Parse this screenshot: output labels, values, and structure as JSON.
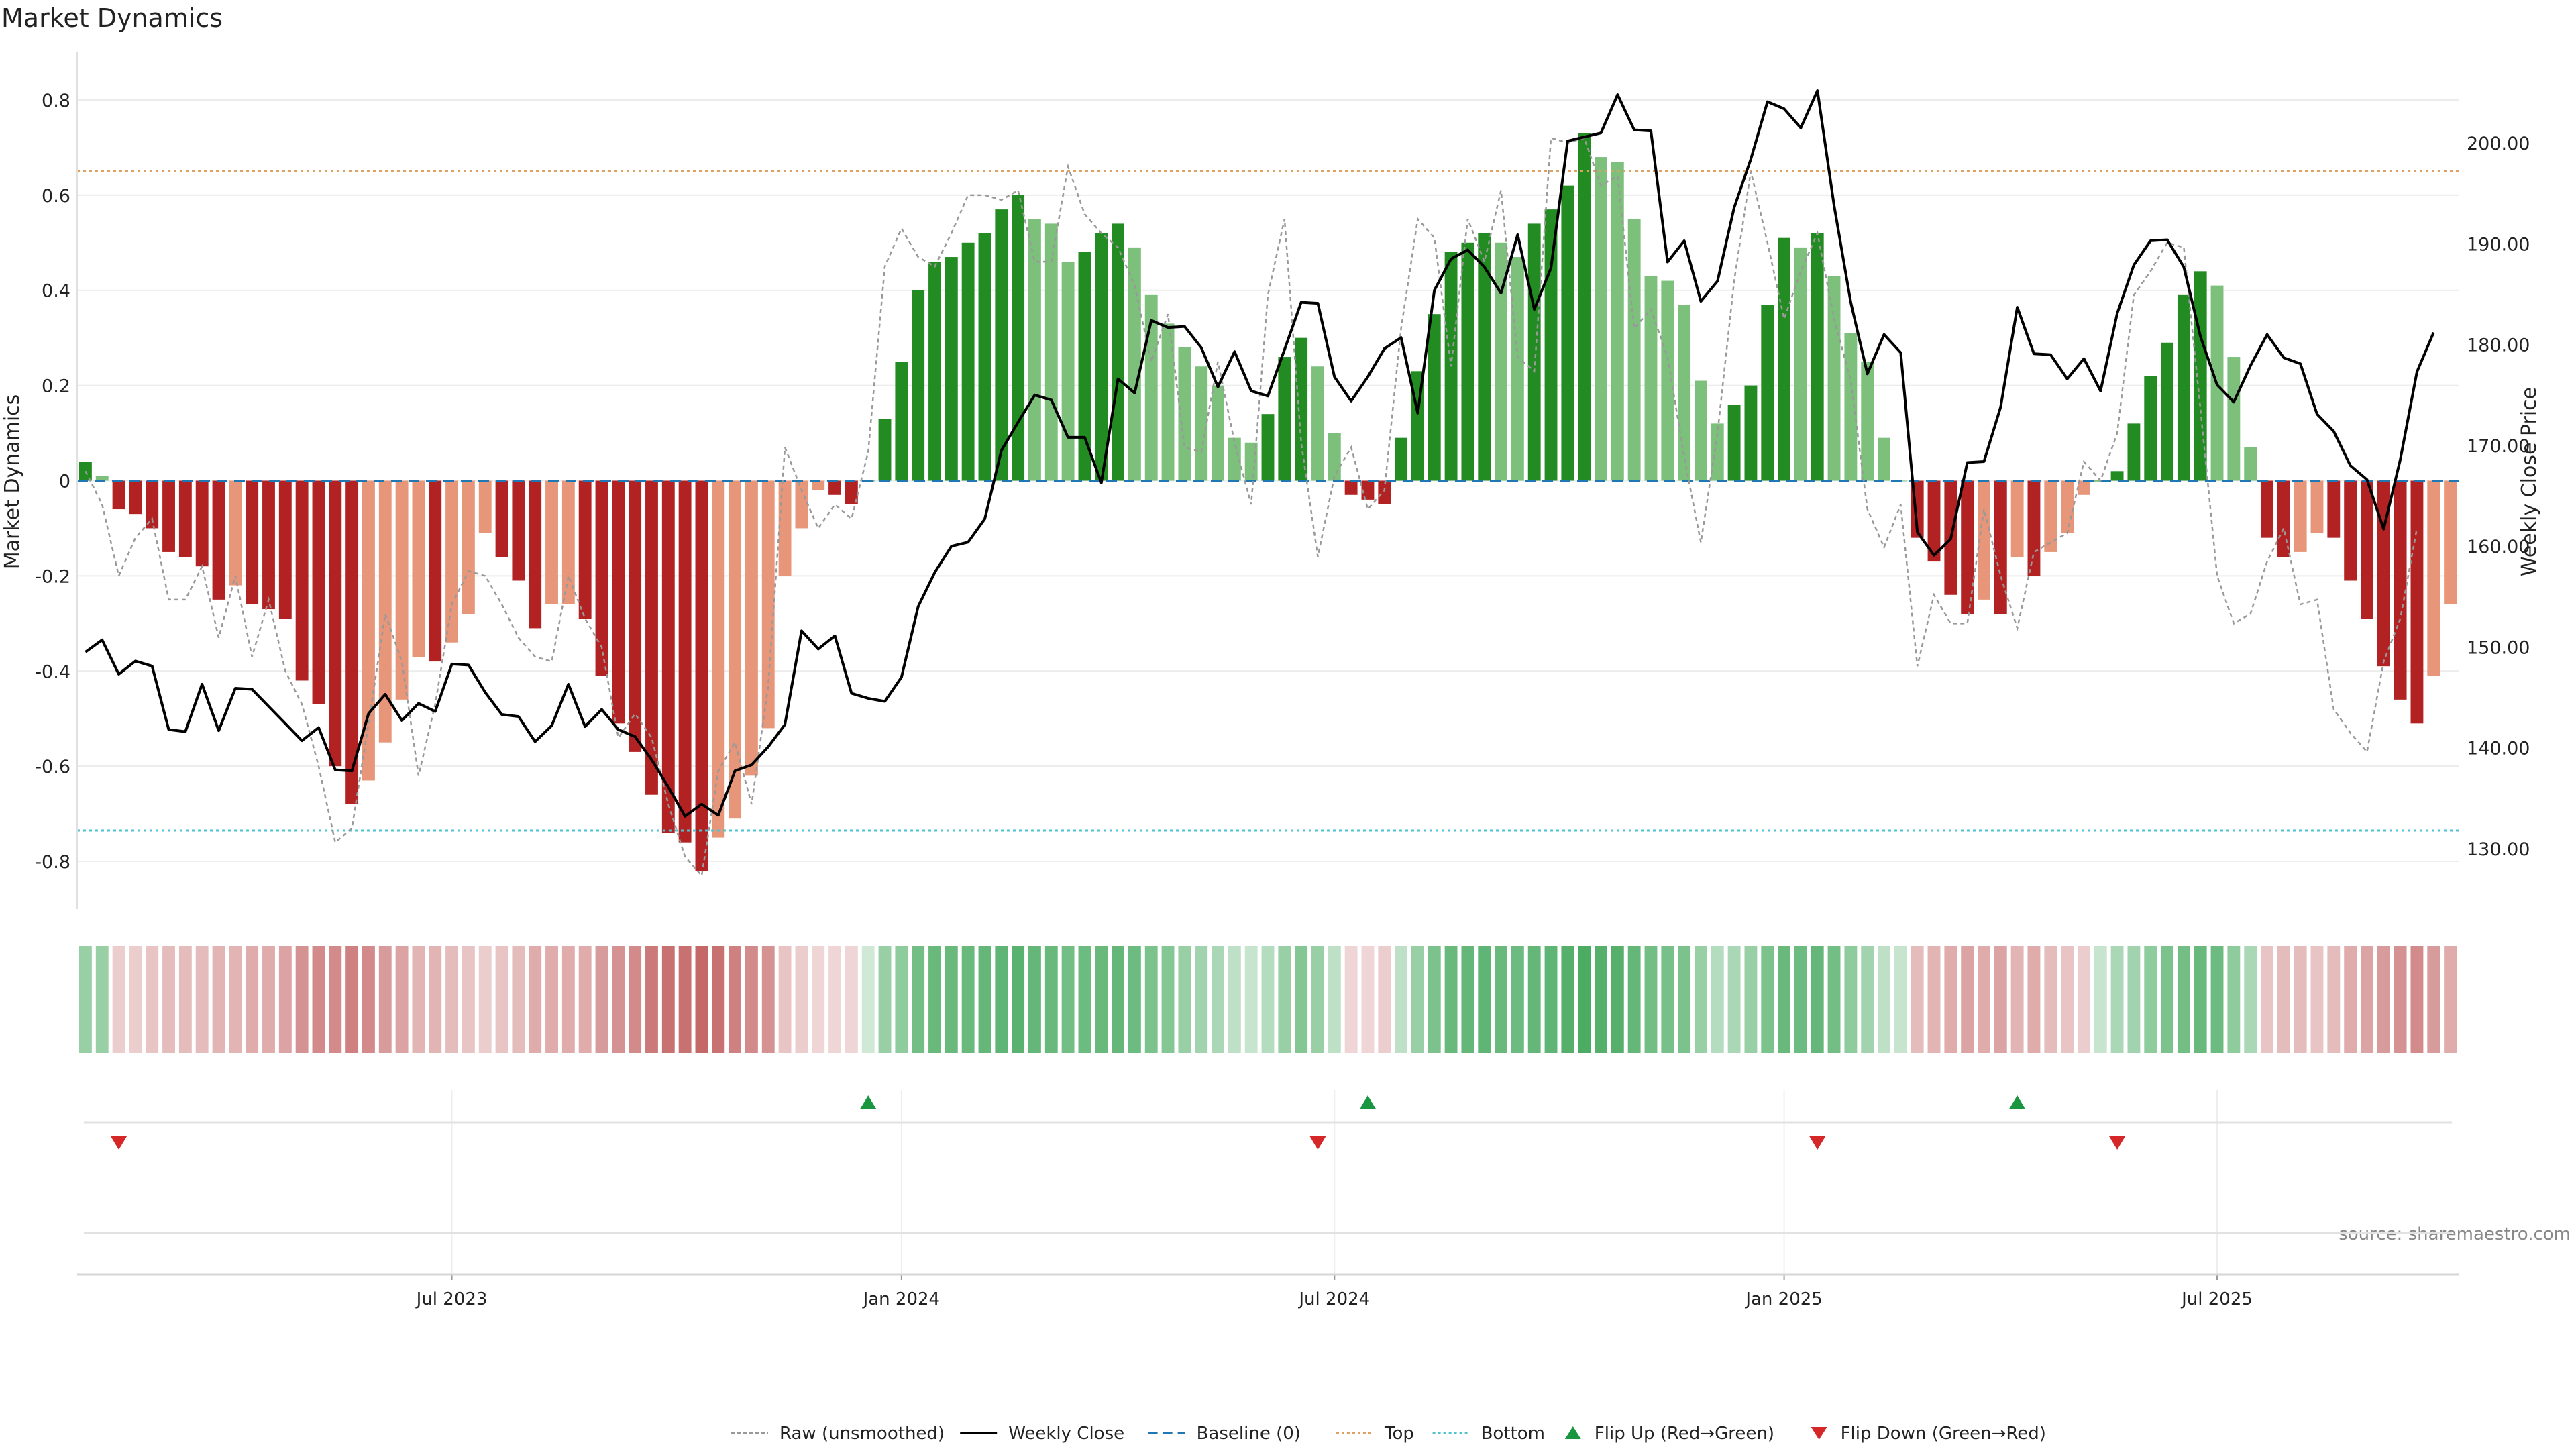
{
  "chart_data": {
    "type": "bar",
    "title": "Market Dynamics",
    "ylabel_left": "Market Dynamics",
    "ylabel_right": "Weekly Close Price",
    "source": "source: sharemaestro.com",
    "left_yticks": [
      {
        "v": 0.8,
        "label": "0.8"
      },
      {
        "v": 0.6,
        "label": "0.6"
      },
      {
        "v": 0.4,
        "label": "0.4"
      },
      {
        "v": 0.2,
        "label": "0.2"
      },
      {
        "v": 0.0,
        "label": "0"
      },
      {
        "v": -0.2,
        "label": "-0.2"
      },
      {
        "v": -0.4,
        "label": "-0.4"
      },
      {
        "v": -0.6,
        "label": "-0.6"
      },
      {
        "v": -0.8,
        "label": "-0.8"
      }
    ],
    "right_yticks": [
      {
        "v": 200,
        "label": "200.00"
      },
      {
        "v": 190,
        "label": "190.00"
      },
      {
        "v": 180,
        "label": "180.00"
      },
      {
        "v": 170,
        "label": "170.00"
      },
      {
        "v": 160,
        "label": "160.00"
      },
      {
        "v": 150,
        "label": "150.00"
      },
      {
        "v": 140,
        "label": "140.00"
      },
      {
        "v": 130,
        "label": "130.00"
      }
    ],
    "xticks": [
      {
        "index": 22,
        "label": "Jul 2023"
      },
      {
        "index": 49,
        "label": "Jan 2024"
      },
      {
        "index": 75,
        "label": "Jul 2024"
      },
      {
        "index": 102,
        "label": "Jan 2025"
      },
      {
        "index": 128,
        "label": "Jul 2025"
      }
    ],
    "ylim_left": [
      -0.9,
      0.9
    ],
    "ylim_right": [
      124,
      209
    ],
    "top_level": 0.65,
    "bottom_level": -0.735,
    "baseline": 0,
    "smoothed": [
      0.04,
      0.01,
      -0.06,
      -0.07,
      -0.1,
      -0.15,
      -0.16,
      -0.18,
      -0.25,
      -0.22,
      -0.26,
      -0.27,
      -0.29,
      -0.42,
      -0.47,
      -0.6,
      -0.68,
      -0.63,
      -0.55,
      -0.46,
      -0.37,
      -0.38,
      -0.34,
      -0.28,
      -0.11,
      -0.16,
      -0.21,
      -0.31,
      -0.26,
      -0.26,
      -0.29,
      -0.41,
      -0.51,
      -0.57,
      -0.66,
      -0.74,
      -0.76,
      -0.82,
      -0.75,
      -0.71,
      -0.62,
      -0.52,
      -0.2,
      -0.1,
      -0.02,
      -0.03,
      -0.05,
      0,
      0.13,
      0.25,
      0.4,
      0.46,
      0.47,
      0.5,
      0.52,
      0.57,
      0.6,
      0.55,
      0.54,
      0.46,
      0.48,
      0.52,
      0.54,
      0.49,
      0.39,
      0.33,
      0.28,
      0.24,
      0.2,
      0.09,
      0.08,
      0.14,
      0.26,
      0.3,
      0.24,
      0.1,
      -0.03,
      -0.04,
      -0.05,
      0.09,
      0.23,
      0.35,
      0.48,
      0.5,
      0.52,
      0.5,
      0.47,
      0.54,
      0.57,
      0.62,
      0.73,
      0.68,
      0.67,
      0.55,
      0.43,
      0.42,
      0.37,
      0.21,
      0.12,
      0.16,
      0.2,
      0.37,
      0.51,
      0.49,
      0.52,
      0.43,
      0.31,
      0.25,
      0.09,
      0,
      -0.12,
      -0.17,
      -0.24,
      -0.28,
      -0.25,
      -0.28,
      -0.16,
      -0.2,
      -0.15,
      -0.11,
      -0.03,
      0,
      0.02,
      0.12,
      0.22,
      0.29,
      0.39,
      0.44,
      0.41,
      0.26,
      0.07,
      -0.12,
      -0.16,
      -0.15,
      -0.11,
      -0.12,
      -0.21,
      -0.29,
      -0.39,
      -0.46,
      -0.51,
      -0.41,
      -0.26
    ],
    "raw": [
      0.02,
      -0.05,
      -0.2,
      -0.12,
      -0.08,
      -0.25,
      -0.25,
      -0.18,
      -0.33,
      -0.2,
      -0.37,
      -0.25,
      -0.4,
      -0.47,
      -0.6,
      -0.76,
      -0.73,
      -0.51,
      -0.28,
      -0.38,
      -0.62,
      -0.47,
      -0.26,
      -0.19,
      -0.2,
      -0.26,
      -0.33,
      -0.37,
      -0.38,
      -0.2,
      -0.29,
      -0.35,
      -0.54,
      -0.49,
      -0.54,
      -0.68,
      -0.79,
      -0.83,
      -0.61,
      -0.55,
      -0.68,
      -0.43,
      0.07,
      -0.02,
      -0.1,
      -0.05,
      -0.08,
      0.06,
      0.45,
      0.53,
      0.47,
      0.45,
      0.52,
      0.6,
      0.6,
      0.59,
      0.61,
      0.46,
      0.46,
      0.66,
      0.56,
      0.52,
      0.49,
      0.41,
      0.25,
      0.35,
      0.07,
      0.06,
      0.25,
      0.08,
      -0.05,
      0.39,
      0.55,
      0.08,
      -0.16,
      0.01,
      0.07,
      -0.06,
      -0.02,
      0.32,
      0.55,
      0.51,
      0.24,
      0.55,
      0.46,
      0.61,
      0.26,
      0.23,
      0.72,
      0.71,
      0.72,
      0.62,
      0.64,
      0.32,
      0.36,
      0.26,
      0.05,
      -0.13,
      0.1,
      0.42,
      0.65,
      0.5,
      0.34,
      0.44,
      0.52,
      0.34,
      0.21,
      -0.06,
      -0.14,
      -0.05,
      -0.39,
      -0.24,
      -0.3,
      -0.3,
      -0.06,
      -0.2,
      -0.31,
      -0.15,
      -0.13,
      -0.11,
      0.04,
      0,
      0.1,
      0.39,
      0.44,
      0.5,
      0.49,
      0.15,
      -0.2,
      -0.3,
      -0.28,
      -0.17,
      -0.1,
      -0.26,
      -0.25,
      -0.48,
      -0.53,
      -0.57,
      -0.38,
      -0.29,
      -0.1
    ],
    "weekly_close": [
      149.5,
      150.7,
      147.3,
      148.6,
      148.1,
      141.8,
      141.6,
      146.3,
      141.7,
      145.9,
      145.8,
      144.1,
      142.4,
      140.7,
      142,
      137.8,
      137.7,
      143.4,
      145.3,
      142.7,
      144.4,
      143.6,
      148.3,
      148.2,
      145.5,
      143.3,
      143.1,
      140.6,
      142.2,
      146.3,
      142.1,
      143.8,
      141.8,
      141.1,
      138.8,
      136.1,
      133.2,
      134.4,
      133.3,
      137.7,
      138.3,
      140.1,
      142.3,
      151.6,
      149.8,
      151.1,
      145.4,
      144.9,
      144.6,
      147,
      154,
      157.4,
      160,
      160.4,
      162.7,
      169.5,
      172.3,
      175,
      174.5,
      170.8,
      170.8,
      166.3,
      176.6,
      175.2,
      182.4,
      181.7,
      181.8,
      179.7,
      175.8,
      179.3,
      175.4,
      174.9,
      179.5,
      184.2,
      184.1,
      176.8,
      174.4,
      176.8,
      179.6,
      180.7,
      173.2,
      185.4,
      188.5,
      189.4,
      187.7,
      185.1,
      190.9,
      183.5,
      187.6,
      200.2,
      200.6,
      201,
      204.8,
      201.3,
      201.2,
      188.2,
      190.3,
      184.3,
      186.3,
      193.6,
      198.4,
      204.1,
      203.4,
      201.5,
      205.2,
      193.8,
      184.2,
      177.1,
      181,
      179.2,
      161.4,
      159.1,
      160.7,
      168.3,
      168.4,
      173.8,
      183.7,
      179.1,
      179,
      176.6,
      178.6,
      175.4,
      183.1,
      187.9,
      190.3,
      190.4,
      187.7,
      180.8,
      176,
      174.3,
      177.9,
      181,
      178.7,
      178.1,
      173.1,
      171.4,
      168,
      166.6,
      161.7,
      168.6,
      177.3,
      181.2
    ],
    "heat_intensity": [
      0.55,
      0.55,
      0.3,
      0.3,
      0.35,
      0.4,
      0.4,
      0.4,
      0.45,
      0.45,
      0.5,
      0.5,
      0.55,
      0.65,
      0.7,
      0.7,
      0.75,
      0.7,
      0.6,
      0.55,
      0.45,
      0.45,
      0.4,
      0.35,
      0.3,
      0.35,
      0.4,
      0.5,
      0.5,
      0.5,
      0.5,
      0.6,
      0.65,
      0.7,
      0.8,
      0.85,
      0.85,
      0.9,
      0.85,
      0.75,
      0.7,
      0.65,
      0.35,
      0.3,
      0.25,
      0.25,
      0.25,
      0.25,
      0.55,
      0.6,
      0.75,
      0.8,
      0.8,
      0.8,
      0.82,
      0.85,
      0.88,
      0.82,
      0.8,
      0.75,
      0.78,
      0.8,
      0.82,
      0.78,
      0.7,
      0.65,
      0.55,
      0.5,
      0.45,
      0.35,
      0.3,
      0.4,
      0.55,
      0.65,
      0.55,
      0.35,
      0.25,
      0.25,
      0.3,
      0.35,
      0.55,
      0.7,
      0.8,
      0.82,
      0.85,
      0.8,
      0.78,
      0.82,
      0.85,
      0.9,
      0.95,
      0.9,
      0.9,
      0.82,
      0.75,
      0.72,
      0.7,
      0.55,
      0.4,
      0.45,
      0.55,
      0.7,
      0.8,
      0.78,
      0.82,
      0.75,
      0.6,
      0.5,
      0.35,
      0.3,
      0.4,
      0.45,
      0.5,
      0.55,
      0.5,
      0.55,
      0.45,
      0.5,
      0.4,
      0.35,
      0.3,
      0.3,
      0.45,
      0.5,
      0.6,
      0.7,
      0.75,
      0.8,
      0.78,
      0.6,
      0.45,
      0.35,
      0.4,
      0.4,
      0.35,
      0.4,
      0.5,
      0.55,
      0.6,
      0.65,
      0.7,
      0.6,
      0.5
    ],
    "flip_up_indices": [
      47,
      77,
      116
    ],
    "flip_down_indices": [
      2,
      74,
      104,
      122
    ],
    "colors": {
      "strong_green": "#228b22",
      "light_green": "#7cc07c",
      "strong_red": "#b22222",
      "light_red": "#e8967a",
      "raw_line": "#999999",
      "close_line": "#000000",
      "baseline": "#1f77b4",
      "top": "#e0a060",
      "bottom": "#4fc3d0",
      "flip_up": "#1a9641",
      "flip_down": "#d62728",
      "heat_green": "#2e9e4a",
      "heat_red": "#b33a3a"
    },
    "legend": [
      {
        "key": "raw",
        "label": "Raw (unsmoothed)"
      },
      {
        "key": "close",
        "label": "Weekly Close"
      },
      {
        "key": "baseline",
        "label": "Baseline (0)"
      },
      {
        "key": "top",
        "label": "Top"
      },
      {
        "key": "bottom",
        "label": "Bottom"
      },
      {
        "key": "flip_up",
        "label": "Flip Up (Red→Green)"
      },
      {
        "key": "flip_down",
        "label": "Flip Down (Green→Red)"
      }
    ]
  }
}
